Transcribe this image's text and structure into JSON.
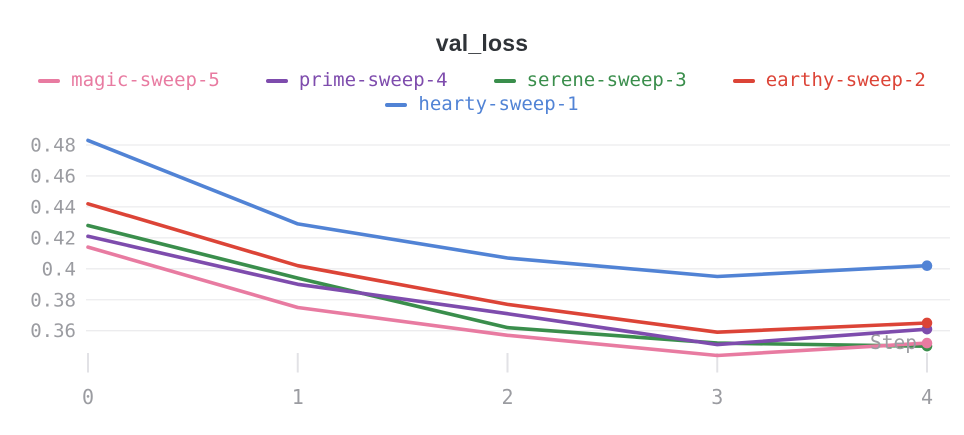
{
  "chart_data": {
    "type": "line",
    "title": "val_loss",
    "xlabel": "Step",
    "x": [
      0,
      1,
      2,
      3,
      4
    ],
    "x_tick_labels": [
      "0",
      "1",
      "2",
      "3",
      "4"
    ],
    "y_tick_labels": [
      "0.48",
      "0.46",
      "0.44",
      "0.42",
      "0.4",
      "0.38",
      "0.36"
    ],
    "y_ticks": [
      0.48,
      0.46,
      0.44,
      0.42,
      0.4,
      0.38,
      0.36
    ],
    "ylim": [
      0.333,
      0.4845
    ],
    "grid": "horizontal",
    "legend_position": "top",
    "series": [
      {
        "name": "magic-sweep-5",
        "color": "#e87ba1",
        "values": [
          0.414,
          0.375,
          0.357,
          0.344,
          0.352
        ]
      },
      {
        "name": "prime-sweep-4",
        "color": "#7e4cad",
        "values": [
          0.421,
          0.39,
          0.371,
          0.351,
          0.361
        ]
      },
      {
        "name": "serene-sweep-3",
        "color": "#3a8e4c",
        "values": [
          0.428,
          0.394,
          0.362,
          0.352,
          0.35
        ]
      },
      {
        "name": "earthy-sweep-2",
        "color": "#dc4437",
        "values": [
          0.442,
          0.402,
          0.377,
          0.359,
          0.365
        ]
      },
      {
        "name": "hearty-sweep-1",
        "color": "#5183d5",
        "values": [
          0.483,
          0.429,
          0.407,
          0.395,
          0.402
        ]
      }
    ]
  },
  "axis_style": {
    "tick_label_color": "#9b9ca1",
    "gridline_color": "#ececee",
    "tick_mark_color": "#e2e2e6",
    "step_label_color": "#9b9ca1"
  }
}
